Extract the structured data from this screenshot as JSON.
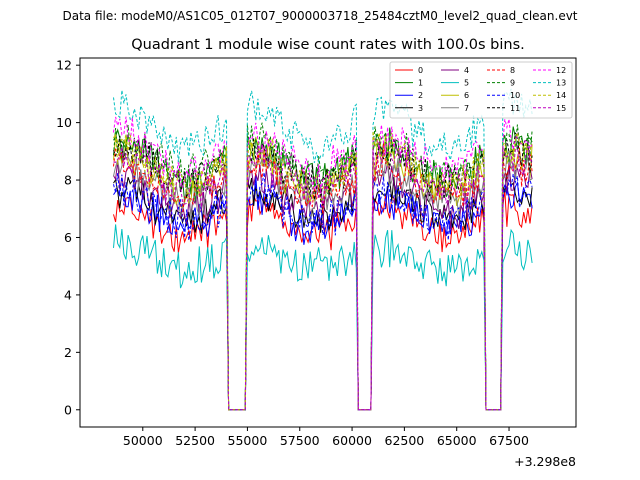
{
  "chart_data": {
    "type": "line",
    "suptitle": "Data file: modeM0/AS1C05_012T07_9000003718_25484cztM0_level2_quad_clean.evt",
    "title": "Quadrant 1 module wise count rates with 100.0s bins.",
    "xlabel": "",
    "ylabel": "",
    "x_offset_label": "+3.298e8",
    "xlim": [
      47000,
      70700
    ],
    "ylim": [
      -0.6,
      12.25
    ],
    "x_ticks": [
      50000,
      52500,
      55000,
      57500,
      60000,
      62500,
      65000,
      67500
    ],
    "x_tick_labels": [
      "50000",
      "52500",
      "55000",
      "57500",
      "60000",
      "62500",
      "65000",
      "67500"
    ],
    "y_ticks": [
      0,
      2,
      4,
      6,
      8,
      10,
      12
    ],
    "y_tick_labels": [
      "0",
      "2",
      "4",
      "6",
      "8",
      "10",
      "12"
    ],
    "legend_position": "top-right",
    "legend_ncol": 4,
    "series": [
      {
        "name": "0",
        "color": "#ff0000",
        "dash": "solid",
        "level": 6.6
      },
      {
        "name": "1",
        "color": "#008000",
        "dash": "solid",
        "level": 8.6
      },
      {
        "name": "2",
        "color": "#0000ff",
        "dash": "solid",
        "level": 6.9
      },
      {
        "name": "3",
        "color": "#000000",
        "dash": "solid",
        "level": 7.2
      },
      {
        "name": "4",
        "color": "#800080",
        "dash": "solid",
        "level": 7.5
      },
      {
        "name": "5",
        "color": "#00bfbf",
        "dash": "solid",
        "level": 5.3
      },
      {
        "name": "6",
        "color": "#bfbf00",
        "dash": "solid",
        "level": 8.3
      },
      {
        "name": "7",
        "color": "#808080",
        "dash": "solid",
        "level": 7.8
      },
      {
        "name": "8",
        "color": "#ff0000",
        "dash": "dashed",
        "level": 8.0
      },
      {
        "name": "9",
        "color": "#008000",
        "dash": "dashed",
        "level": 8.8
      },
      {
        "name": "10",
        "color": "#0000ff",
        "dash": "dashed",
        "level": 7.1
      },
      {
        "name": "11",
        "color": "#000000",
        "dash": "dashed",
        "level": 8.5
      },
      {
        "name": "12",
        "color": "#ff00ff",
        "dash": "dashed",
        "level": 9.0
      },
      {
        "name": "13",
        "color": "#00bfbf",
        "dash": "dashed",
        "level": 9.8
      },
      {
        "name": "14",
        "color": "#bfbf00",
        "dash": "dashed",
        "level": 8.5
      },
      {
        "name": "15",
        "color": "#bf00bf",
        "dash": "dashed",
        "level": 8.2
      }
    ],
    "x_start": 48600,
    "x_end": 68600,
    "bin_width": 100,
    "gaps": [
      [
        54100,
        54900
      ],
      [
        60300,
        60900
      ],
      [
        66400,
        67100
      ]
    ]
  }
}
